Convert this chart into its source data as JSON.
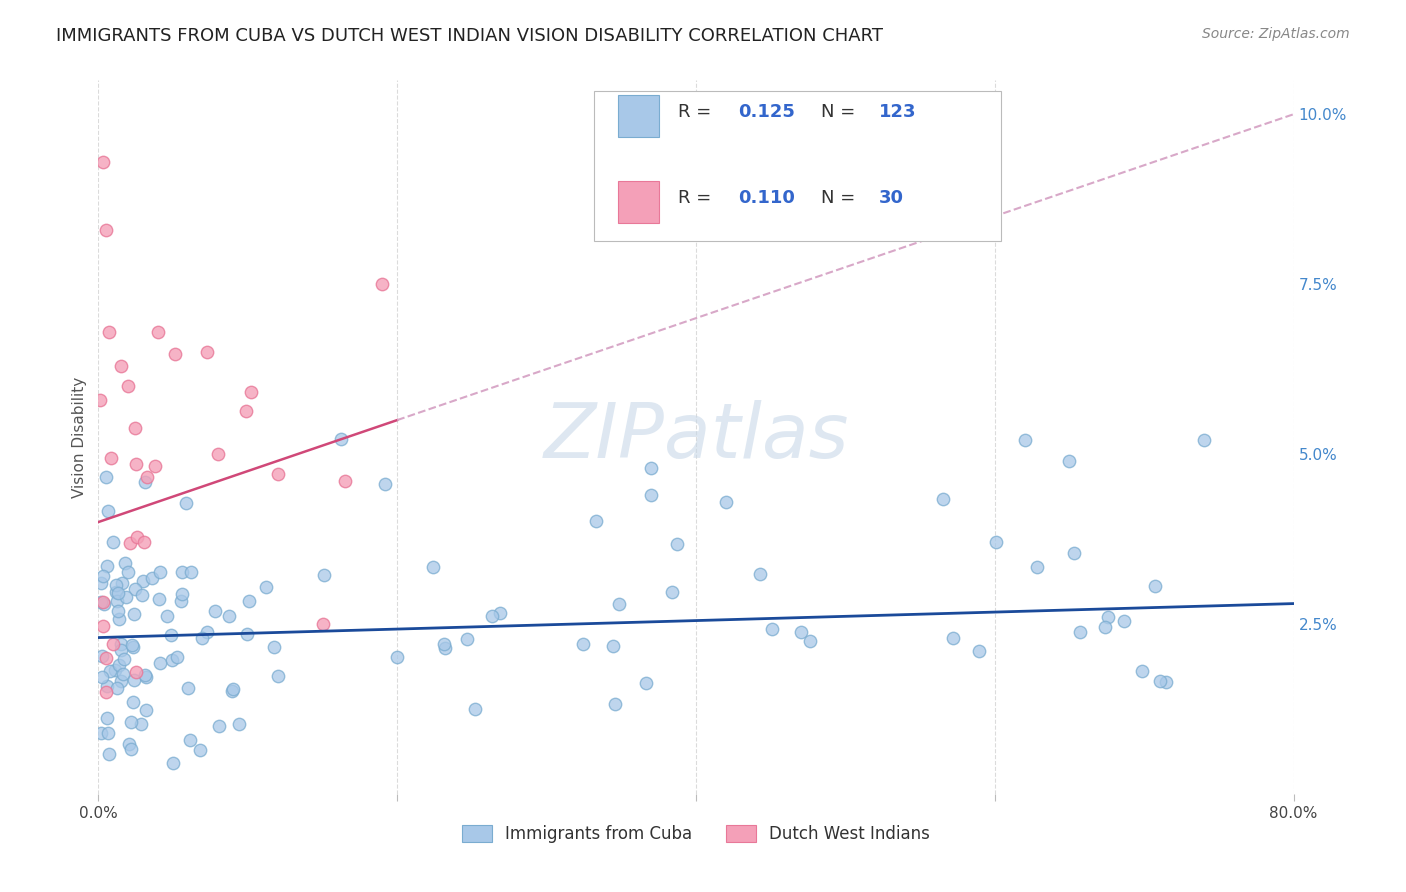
{
  "title": "IMMIGRANTS FROM CUBA VS DUTCH WEST INDIAN VISION DISABILITY CORRELATION CHART",
  "source": "Source: ZipAtlas.com",
  "ylabel": "Vision Disability",
  "watermark": "ZIPatlas",
  "xlim": [
    0,
    0.8
  ],
  "ylim": [
    0,
    0.105
  ],
  "x_ticks": [
    0.0,
    0.2,
    0.4,
    0.6,
    0.8
  ],
  "x_tick_labels": [
    "0.0%",
    "",
    "",
    "",
    "80.0%"
  ],
  "y_ticks_right": [
    0.1,
    0.075,
    0.05,
    0.025
  ],
  "y_tick_labels_right": [
    "10.0%",
    "7.5%",
    "5.0%",
    "2.5%"
  ],
  "cuba_color": "#a8c8e8",
  "dutch_color": "#f4a0b8",
  "cuba_edge_color": "#7aacd0",
  "dutch_edge_color": "#e87898",
  "cuba_line_color": "#1a4a9a",
  "dutch_line_solid_color": "#d04878",
  "dutch_line_dash_color": "#d8a8c8",
  "R_cuba": 0.125,
  "N_cuba": 123,
  "R_dutch": 0.11,
  "N_dutch": 30,
  "background_color": "#ffffff",
  "grid_color": "#d8d8d8",
  "title_fontsize": 13,
  "source_fontsize": 10,
  "axis_label_fontsize": 11,
  "tick_fontsize": 11,
  "legend_fontsize": 13
}
